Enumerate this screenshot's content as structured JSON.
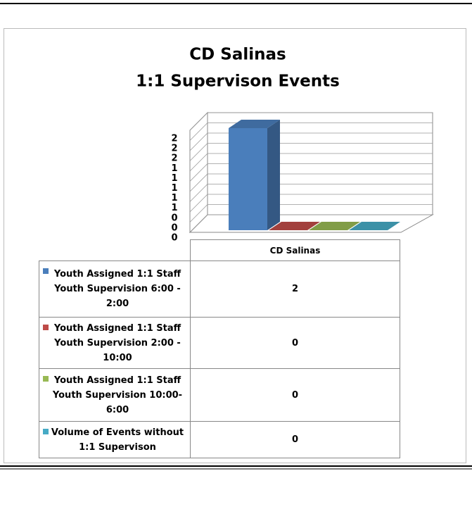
{
  "chart_data": {
    "type": "bar3d",
    "title": [
      "CD Salinas",
      "1:1 Supervison Events"
    ],
    "categories": [
      "CD Salinas"
    ],
    "series": [
      {
        "name": "Youth Assigned 1:1 Staff Youth Supervision 6:00 - 2:00",
        "color": "#4a7ebb",
        "values": [
          2
        ]
      },
      {
        "name": "Youth Assigned 1:1 Staff Youth Supervision 2:00 - 10:00",
        "color": "#be4b48",
        "values": [
          0
        ]
      },
      {
        "name": "Youth Assigned 1:1 Staff Youth Supervision 10:00-6:00",
        "color": "#98b954",
        "values": [
          0
        ]
      },
      {
        "name": "Volume of Events without 1:1 Supervison",
        "color": "#46aac5",
        "values": [
          0
        ]
      }
    ],
    "ylim": [
      0,
      2
    ],
    "yticks": [
      0,
      {
        "value": 0.2,
        "label": "0"
      },
      {
        "value": 0.4,
        "label": "0"
      },
      {
        "value": 0.6,
        "label": "1"
      },
      {
        "value": 0.8,
        "label": "1"
      },
      1,
      {
        "value": 1.2,
        "label": "1"
      },
      {
        "value": 1.4,
        "label": "1"
      },
      {
        "value": 1.6,
        "label": "2"
      },
      {
        "value": 1.8,
        "label": "2"
      },
      2
    ],
    "grid": true
  }
}
